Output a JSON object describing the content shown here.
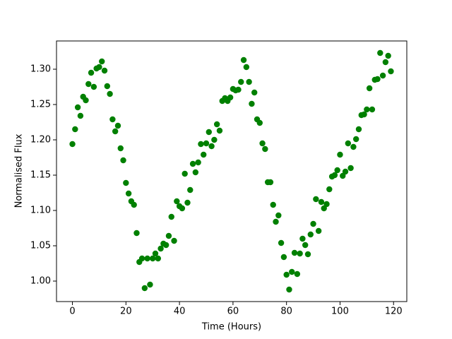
{
  "chart_data": {
    "type": "scatter",
    "xlabel": "Time (Hours)",
    "ylabel": "Normalised Flux",
    "color": "#008000",
    "x": [
      0,
      1,
      2,
      3,
      4,
      5,
      6,
      7,
      8,
      9,
      10,
      11,
      12,
      13,
      14,
      15,
      16,
      17,
      18,
      19,
      20,
      21,
      22,
      23,
      24,
      25,
      26,
      27,
      28,
      29,
      30,
      31,
      32,
      33,
      34,
      35,
      36,
      37,
      38,
      39,
      40,
      41,
      42,
      43,
      44,
      45,
      46,
      47,
      48,
      49,
      50,
      51,
      52,
      53,
      54,
      55,
      56,
      57,
      58,
      59,
      60,
      61,
      62,
      63,
      64,
      65,
      66,
      67,
      68,
      69,
      70,
      71,
      72,
      73,
      74,
      75,
      76,
      77,
      78,
      79,
      80,
      81,
      82,
      83,
      84,
      85,
      86,
      87,
      88,
      89,
      90,
      91,
      92,
      93,
      94,
      95,
      96,
      97,
      98,
      99,
      100,
      101,
      102,
      103,
      104,
      105,
      106,
      107,
      108,
      109,
      110,
      111,
      112,
      113,
      114,
      115,
      116,
      117,
      118,
      119
    ],
    "values": [
      1.194,
      1.215,
      1.246,
      1.234,
      1.261,
      1.256,
      1.279,
      1.295,
      1.275,
      1.301,
      1.303,
      1.311,
      1.298,
      1.276,
      1.265,
      1.229,
      1.212,
      1.22,
      1.188,
      1.171,
      1.139,
      1.124,
      1.113,
      1.108,
      1.068,
      1.027,
      1.032,
      0.99,
      1.032,
      0.995,
      1.032,
      1.039,
      1.032,
      1.046,
      1.053,
      1.051,
      1.064,
      1.091,
      1.057,
      1.113,
      1.106,
      1.103,
      1.152,
      1.111,
      1.129,
      1.166,
      1.154,
      1.168,
      1.194,
      1.179,
      1.195,
      1.211,
      1.191,
      1.2,
      1.222,
      1.213,
      1.255,
      1.259,
      1.255,
      1.26,
      1.272,
      1.27,
      1.271,
      1.282,
      1.313,
      1.303,
      1.282,
      1.251,
      1.267,
      1.229,
      1.224,
      1.195,
      1.187,
      1.14,
      1.14,
      1.108,
      1.084,
      1.093,
      1.054,
      1.034,
      1.009,
      0.988,
      1.013,
      1.04,
      1.01,
      1.039,
      1.06,
      1.051,
      1.038,
      1.066,
      1.081,
      1.116,
      1.071,
      1.112,
      1.103,
      1.109,
      1.13,
      1.148,
      1.15,
      1.157,
      1.179,
      1.149,
      1.155,
      1.195,
      1.16,
      1.19,
      1.201,
      1.215,
      1.235,
      1.236,
      1.243,
      1.273,
      1.243,
      1.285,
      1.286,
      1.323,
      1.291,
      1.31,
      1.319,
      1.297
    ],
    "xlim": [
      -5.95,
      124.95
    ],
    "xticks": [
      0,
      20,
      40,
      60,
      80,
      100,
      120
    ],
    "ylim": [
      0.971,
      1.34
    ],
    "yticks": [
      {
        "value": 1,
        "label": "1.00"
      },
      1.05,
      {
        "value": 1.1,
        "label": "1.10"
      },
      1.15,
      {
        "value": 1.2,
        "label": "1.20"
      },
      1.25,
      {
        "value": 1.3,
        "label": "1.30"
      }
    ]
  }
}
